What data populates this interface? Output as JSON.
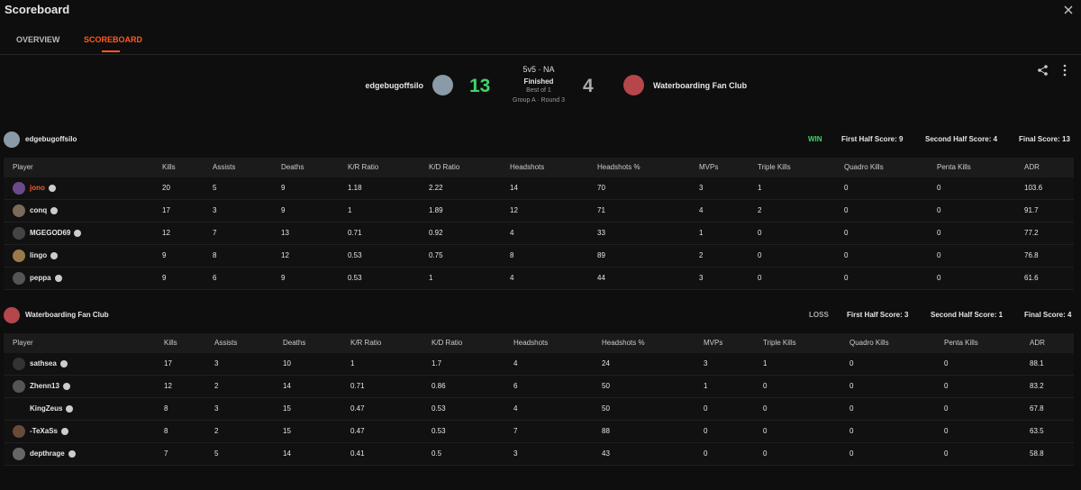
{
  "header": {
    "title": "Scoreboard",
    "tabs": [
      "OVERVIEW",
      "SCOREBOARD"
    ]
  },
  "match": {
    "team1": "edgebugoffsilo",
    "score1": 13,
    "mode": "5v5 · NA",
    "status": "Finished",
    "format": "Best of 1",
    "stage": "Group A · Round 3",
    "score2": 4,
    "team2": "Waterboarding Fan Club"
  },
  "teams": [
    {
      "name": "edgebugoffsilo",
      "result": "WIN",
      "first_half": "First Half Score: 9",
      "second_half": "Second Half Score: 4",
      "final": "Final Score: 13",
      "columns": [
        "Player",
        "Kills",
        "Assists",
        "Deaths",
        "K/R Ratio",
        "K/D Ratio",
        "Headshots",
        "Headshots %",
        "MVPs",
        "Triple Kills",
        "Quadro Kills",
        "Penta Kills",
        "ADR"
      ],
      "rows": [
        [
          "jono",
          20,
          5,
          9,
          1.18,
          2.22,
          14,
          70,
          3,
          1,
          0,
          0,
          103.6
        ],
        [
          "conq",
          17,
          3,
          9,
          1,
          1.89,
          12,
          71,
          4,
          2,
          0,
          0,
          91.7
        ],
        [
          "MGEGOD69",
          12,
          7,
          13,
          0.71,
          0.92,
          4,
          33,
          1,
          0,
          0,
          0,
          77.2
        ],
        [
          "lingo",
          9,
          8,
          12,
          0.53,
          0.75,
          8,
          89,
          2,
          0,
          0,
          0,
          76.8
        ],
        [
          "peppa",
          9,
          6,
          9,
          0.53,
          1,
          4,
          44,
          3,
          0,
          0,
          0,
          61.6
        ]
      ]
    },
    {
      "name": "Waterboarding Fan Club",
      "result": "LOSS",
      "first_half": "First Half Score: 3",
      "second_half": "Second Half Score: 1",
      "final": "Final Score: 4",
      "columns": [
        "Player",
        "Kills",
        "Assists",
        "Deaths",
        "K/R Ratio",
        "K/D Ratio",
        "Headshots",
        "Headshots %",
        "MVPs",
        "Triple Kills",
        "Quadro Kills",
        "Penta Kills",
        "ADR"
      ],
      "rows": [
        [
          "sathsea",
          17,
          3,
          10,
          1,
          1.7,
          4,
          24,
          3,
          1,
          0,
          0,
          88.1
        ],
        [
          "Zhenn13",
          12,
          2,
          14,
          0.71,
          0.86,
          6,
          50,
          1,
          0,
          0,
          0,
          83.2
        ],
        [
          "KingZeus",
          8,
          3,
          15,
          0.47,
          0.53,
          4,
          50,
          0,
          0,
          0,
          0,
          67.8
        ],
        [
          "-TeXaSs",
          8,
          2,
          15,
          0.47,
          0.53,
          7,
          88,
          0,
          0,
          0,
          0,
          63.5
        ],
        [
          "depthrage",
          7,
          5,
          14,
          0.41,
          0.5,
          3,
          43,
          0,
          0,
          0,
          0,
          58.8
        ]
      ]
    }
  ]
}
